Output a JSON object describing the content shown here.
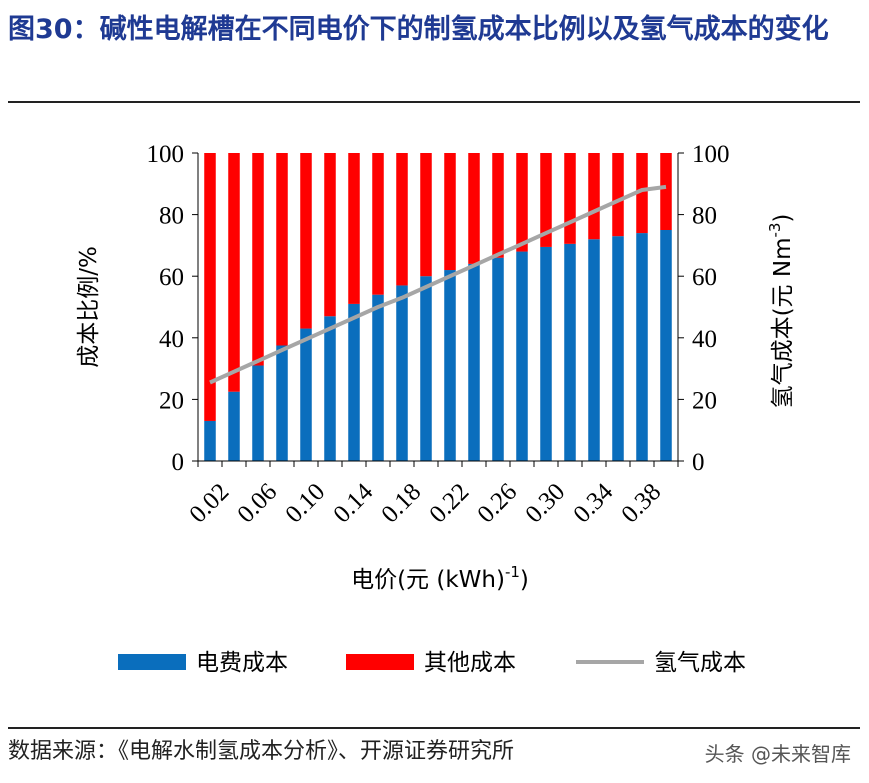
{
  "header": {
    "title": "图30：碱性电解槽在不同电价下的制氢成本比例以及氢气成本的变化"
  },
  "footer": {
    "source": "数据来源：《电解水制氢成本分析》、开源证券研究所",
    "watermark": "头条 @未来智库"
  },
  "colors": {
    "electricity": "#0a6ebd",
    "other": "#ff0000",
    "hydrogen_line": "#a6a6a6",
    "title": "#1f3a93"
  },
  "chart_data": {
    "type": "bar",
    "stacked": true,
    "x": [
      0.02,
      0.04,
      0.06,
      0.08,
      0.1,
      0.12,
      0.14,
      0.16,
      0.18,
      0.2,
      0.22,
      0.24,
      0.26,
      0.28,
      0.3,
      0.32,
      0.34,
      0.36,
      0.38,
      0.4
    ],
    "tick_labels": [
      "0.02",
      "0.06",
      "0.10",
      "0.14",
      "0.18",
      "0.22",
      "0.26",
      "0.30",
      "0.34",
      "0.38"
    ],
    "xlabel_main": "电价(元 (kWh)",
    "xlabel_sup": "-1",
    "xlabel_end": ")",
    "ylabel_left": "成本比例/%",
    "ylabel_right_main": "氢气成本(元 Nm",
    "ylabel_right_sup": "-3",
    "ylabel_right_end": ")",
    "ylim_left": [
      0,
      100
    ],
    "ylim_right": [
      0,
      100
    ],
    "yticks": [
      "0",
      "20",
      "40",
      "60",
      "80",
      "100"
    ],
    "grid": false,
    "legend_position": "bottom",
    "series": [
      {
        "name": "电费成本",
        "kind": "bar",
        "axis": "left",
        "values": [
          13,
          22.5,
          31,
          37.5,
          43,
          47,
          51,
          54,
          57,
          60,
          62,
          64,
          66,
          68,
          69.5,
          70.5,
          72,
          73,
          74,
          75
        ]
      },
      {
        "name": "其他成本",
        "kind": "bar",
        "axis": "left",
        "values": [
          87,
          77.5,
          69,
          62.5,
          57,
          53,
          49,
          46,
          43,
          40,
          38,
          36,
          34,
          32,
          30.5,
          29.5,
          28,
          27,
          26,
          25
        ]
      },
      {
        "name": "氢气成本",
        "kind": "line",
        "axis": "right",
        "values": [
          25.5,
          29,
          32.5,
          36,
          39.5,
          43,
          46.5,
          50,
          53,
          56.5,
          60,
          63.5,
          67,
          70.5,
          74,
          77.5,
          81,
          84.5,
          88,
          89
        ]
      }
    ]
  }
}
